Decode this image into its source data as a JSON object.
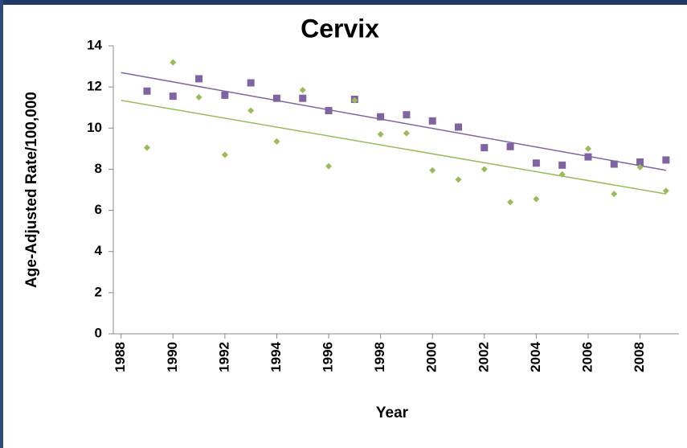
{
  "chart_data": {
    "type": "scatter",
    "title": "Cervix",
    "x_label": "Year",
    "y_label": "Age-Adjusted Rate/100,000",
    "x": [
      1989,
      1990,
      1991,
      1992,
      1993,
      1994,
      1995,
      1996,
      1997,
      1998,
      1999,
      2000,
      2001,
      2002,
      2003,
      2004,
      2005,
      2006,
      2007,
      2008,
      2009
    ],
    "series": [
      {
        "color": "#8064a2",
        "marker": "square",
        "values": [
          11.8,
          11.55,
          12.4,
          11.6,
          12.2,
          11.45,
          11.45,
          10.85,
          11.4,
          10.55,
          10.65,
          10.35,
          10.05,
          9.05,
          9.1,
          8.3,
          8.2,
          8.6,
          8.25,
          8.35,
          8.45
        ]
      },
      {
        "color": "#9bbb59",
        "marker": "diamond",
        "values": [
          9.05,
          13.2,
          11.5,
          8.7,
          10.85,
          9.35,
          11.85,
          8.15,
          11.35,
          9.7,
          9.75,
          7.95,
          7.5,
          8.0,
          6.4,
          6.55,
          7.75,
          9.0,
          6.8,
          8.1,
          6.95
        ]
      }
    ],
    "trendlines": [
      {
        "color": "#8064a2",
        "x": [
          1988,
          2009
        ],
        "values": [
          12.7,
          7.95
        ]
      },
      {
        "color": "#9bbb59",
        "x": [
          1988,
          2009
        ],
        "values": [
          11.35,
          6.8
        ]
      }
    ],
    "xlim": [
      1987.7,
      2009.5
    ],
    "xticks": [
      1988,
      1990,
      1992,
      1994,
      1996,
      1998,
      2000,
      2002,
      2004,
      2006,
      2008
    ],
    "ylim": [
      0,
      14
    ],
    "yticks": [
      0,
      2,
      4,
      6,
      8,
      10,
      12,
      14
    ],
    "grid": false
  }
}
